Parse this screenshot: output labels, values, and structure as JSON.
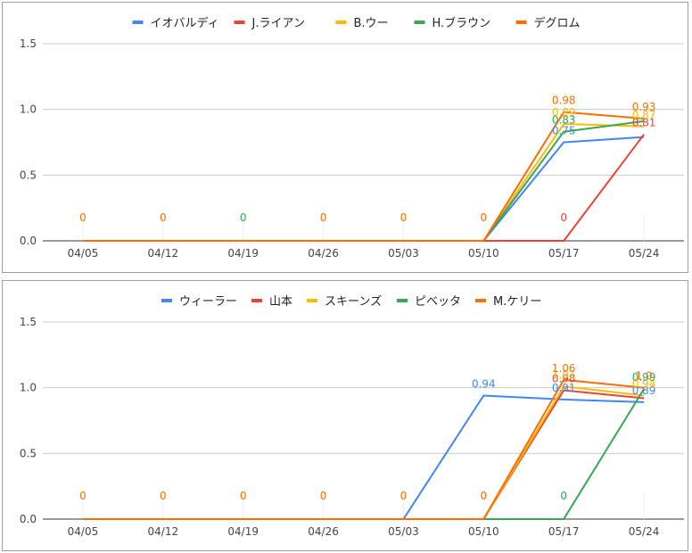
{
  "chart_data": [
    {
      "type": "line",
      "categories": [
        "04/05",
        "04/12",
        "04/19",
        "04/26",
        "05/03",
        "05/10",
        "05/17",
        "05/24"
      ],
      "ylim": [
        0,
        1.5
      ],
      "yticks": [
        "0.0",
        "0.5",
        "1.0",
        "1.5"
      ],
      "grid": true,
      "legend_position": "top",
      "series": [
        {
          "name": "イオバルディ",
          "color": "#4285f4",
          "values": [
            0,
            0,
            0,
            0,
            0,
            0,
            0.75,
            0.79
          ],
          "labels": [
            "",
            "",
            "",
            "",
            "",
            "",
            "0.75",
            ""
          ]
        },
        {
          "name": "J.ライアン",
          "color": "#ea4335",
          "values": [
            0,
            0,
            0,
            0,
            0,
            0,
            0,
            0.81
          ],
          "labels": [
            "",
            "",
            "",
            "",
            "",
            "",
            "0",
            "0.81"
          ]
        },
        {
          "name": "B.ウー",
          "color": "#fbbc04",
          "values": [
            0,
            0,
            0,
            0,
            0,
            0,
            0.89,
            0.87
          ],
          "labels": [
            "",
            "",
            "",
            "",
            "",
            "",
            "0.89",
            "0.87"
          ]
        },
        {
          "name": "H.ブラウン",
          "color": "#34a853",
          "values": [
            0,
            0,
            0,
            0,
            0,
            0,
            0.83,
            0.91
          ],
          "labels": [
            "",
            "",
            "0",
            "",
            "",
            "",
            "0.83",
            ""
          ]
        },
        {
          "name": "デグロム",
          "color": "#ff6d01",
          "values": [
            0,
            0,
            0,
            0,
            0,
            0,
            0.98,
            0.93
          ],
          "labels": [
            "0",
            "0",
            "",
            "0",
            "0",
            "0",
            "0.98",
            "0.93"
          ]
        }
      ]
    },
    {
      "type": "line",
      "categories": [
        "04/05",
        "04/12",
        "04/19",
        "04/26",
        "05/03",
        "05/10",
        "05/17",
        "05/24"
      ],
      "ylim": [
        0,
        1.5
      ],
      "yticks": [
        "0.0",
        "0.5",
        "1.0",
        "1.5"
      ],
      "grid": true,
      "legend_position": "top",
      "series": [
        {
          "name": "ウィーラー",
          "color": "#4285f4",
          "values": [
            0,
            0,
            0,
            0,
            0,
            0.94,
            0.91,
            0.89
          ],
          "labels": [
            "",
            "",
            "",
            "",
            "",
            "0.94",
            "0.91",
            "0.89"
          ]
        },
        {
          "name": "山本",
          "color": "#ea4335",
          "values": [
            0,
            0,
            0,
            0,
            0,
            0,
            0.98,
            0.92
          ],
          "labels": [
            "",
            "",
            "",
            "",
            "",
            "",
            "0.98",
            ""
          ]
        },
        {
          "name": "スキーンズ",
          "color": "#fbbc04",
          "values": [
            0,
            0,
            0,
            0,
            0,
            0,
            1.01,
            0.94
          ],
          "labels": [
            "",
            "",
            "",
            "",
            "",
            "",
            "1.01",
            "0.94"
          ]
        },
        {
          "name": "ピベッタ",
          "color": "#34a853",
          "values": [
            0,
            0,
            0,
            0,
            0,
            0,
            0,
            0.99
          ],
          "labels": [
            "",
            "",
            "",
            "",
            "",
            "",
            "0",
            "0.99"
          ]
        },
        {
          "name": "M.ケリー",
          "color": "#ff6d01",
          "values": [
            0,
            0,
            0,
            0,
            0,
            0,
            1.06,
            1.0
          ],
          "labels": [
            "0",
            "0",
            "0",
            "0",
            "0",
            "0",
            "1.06",
            "1.0"
          ]
        }
      ]
    }
  ]
}
